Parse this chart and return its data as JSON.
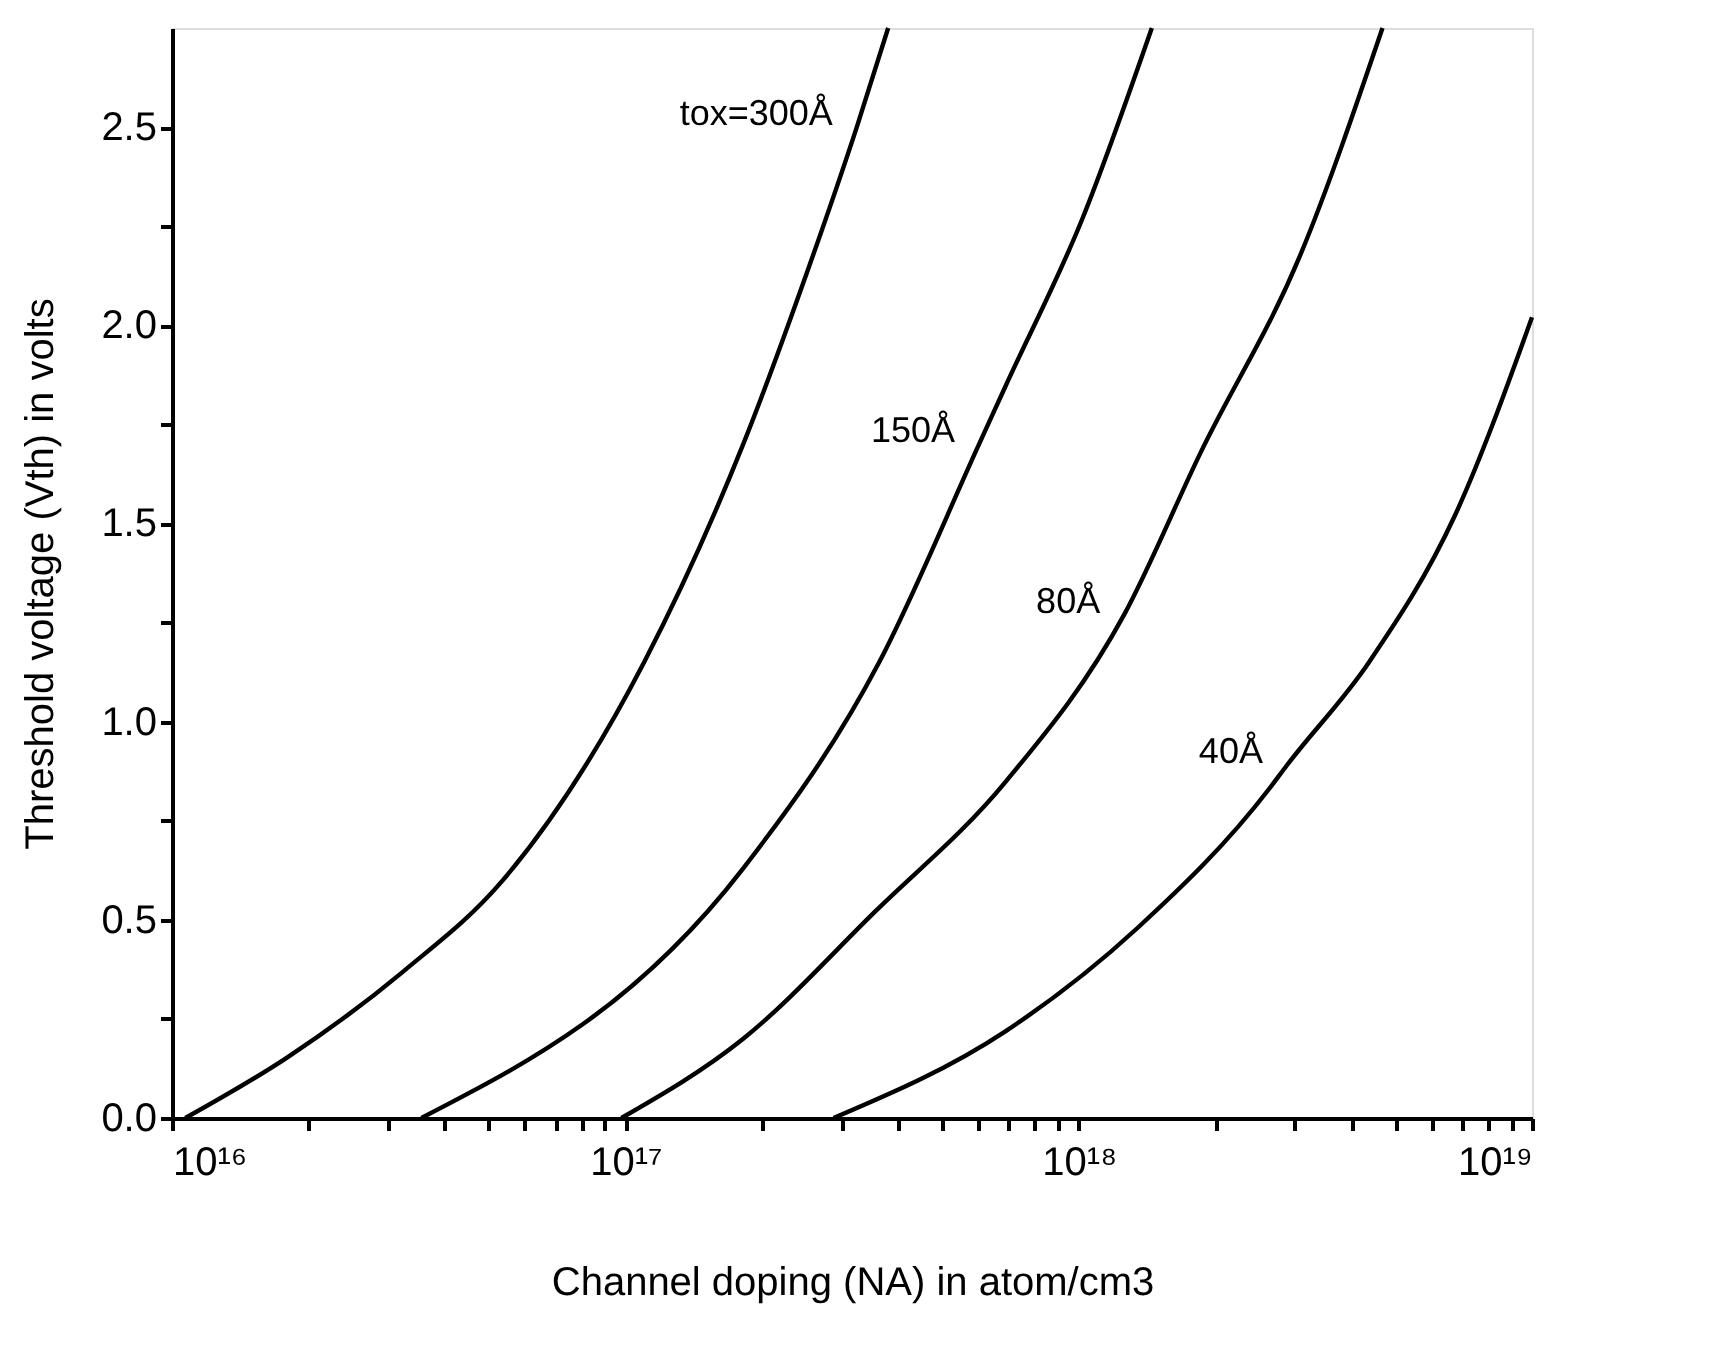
{
  "chart_data": {
    "type": "line",
    "xlabel": "Channel doping (NA) in atom/cm3",
    "ylabel": "Threshold voltage (Vth) in volts",
    "log": "x",
    "grid": false,
    "legend": false,
    "marker": "none",
    "line_style": "solid",
    "xlim": [
      1e+16,
      1e+19
    ],
    "ylim": [
      0,
      2.75
    ],
    "xticks": [
      {
        "value": 1e+16,
        "label": "10¹⁶"
      },
      {
        "value": 2e+16,
        "label": null
      },
      {
        "value": 3e+16,
        "label": null
      },
      {
        "value": 4e+16,
        "label": null
      },
      {
        "value": 5e+16,
        "label": null
      },
      {
        "value": 6e+16,
        "label": null
      },
      {
        "value": 7e+16,
        "label": null
      },
      {
        "value": 8e+16,
        "label": null
      },
      {
        "value": 9e+16,
        "label": null
      },
      {
        "value": 1e+17,
        "label": "10¹⁷"
      },
      {
        "value": 2e+17,
        "label": null
      },
      {
        "value": 3e+17,
        "label": null
      },
      {
        "value": 4e+17,
        "label": null
      },
      {
        "value": 5e+17,
        "label": null
      },
      {
        "value": 6e+17,
        "label": null
      },
      {
        "value": 7e+17,
        "label": null
      },
      {
        "value": 8e+17,
        "label": null
      },
      {
        "value": 9e+17,
        "label": null
      },
      {
        "value": 1e+18,
        "label": "10¹⁸"
      },
      {
        "value": 2e+18,
        "label": null
      },
      {
        "value": 3e+18,
        "label": null
      },
      {
        "value": 4e+18,
        "label": null
      },
      {
        "value": 5e+18,
        "label": null
      },
      {
        "value": 6e+18,
        "label": null
      },
      {
        "value": 7e+18,
        "label": null
      },
      {
        "value": 8e+18,
        "label": null
      },
      {
        "value": 9e+18,
        "label": null
      },
      {
        "value": 1e+19,
        "label": "10¹⁹"
      }
    ],
    "yticks": [
      {
        "value": 0,
        "label": "0.0"
      },
      {
        "value": 0.25,
        "label": null
      },
      {
        "value": 0.5,
        "label": "0.5"
      },
      {
        "value": 0.75,
        "label": null
      },
      {
        "value": 1,
        "label": "1.0"
      },
      {
        "value": 1.25,
        "label": null
      },
      {
        "value": 1.5,
        "label": "1.5"
      },
      {
        "value": 1.75,
        "label": null
      },
      {
        "value": 2,
        "label": "2.0"
      },
      {
        "value": 2.25,
        "label": null
      },
      {
        "value": 2.5,
        "label": "2.5"
      }
    ],
    "series": [
      {
        "color": "#000000",
        "x": [
          1.07e+16,
          1.78e+16,
          3.24e+16,
          5.37e+16,
          1.1e+17,
          1.82e+17,
          2.51e+17,
          3.24e+17,
          3.8e+17
        ],
        "values": [
          0,
          0.15,
          0.37,
          0.6,
          1.15,
          1.7,
          2.13,
          2.5,
          2.75
        ]
      },
      {
        "color": "#000000",
        "x": [
          3.55e+16,
          1.82e+17,
          3.63e+17,
          6.03e+17,
          6.92e+17,
          1.02e+18,
          1.45e+18
        ],
        "values": [
          0,
          0.63,
          1.15,
          1.7,
          1.85,
          2.27,
          2.75
        ]
      },
      {
        "color": "#000000",
        "x": [
          9.8e+16,
          1.82e+17,
          3.55e+17,
          6.92e+17,
          1.26e+18,
          1.86e+18,
          3.09e+18,
          4.68e+18
        ],
        "values": [
          0,
          0.2,
          0.52,
          0.85,
          1.27,
          1.68,
          2.18,
          2.75
        ]
      },
      {
        "color": "#000000",
        "x": [
          2.88e+17,
          6.92e+17,
          1.35e+18,
          2.63e+18,
          2.88e+18,
          4.37e+18,
          6.76e+18,
          1e+19
        ],
        "values": [
          0,
          0.22,
          0.48,
          0.83,
          0.89,
          1.15,
          1.52,
          2.02
        ]
      }
    ],
    "annotations": [
      {
        "text": "tox=300Å",
        "x": 3.24e+17,
        "y": 2.5
      },
      {
        "text": "150Å",
        "x": 6.03e+17,
        "y": 1.7
      },
      {
        "text": "80Å",
        "x": 1.26e+18,
        "y": 1.27
      },
      {
        "text": "40Å",
        "x": 2.88e+18,
        "y": 0.89
      }
    ]
  }
}
